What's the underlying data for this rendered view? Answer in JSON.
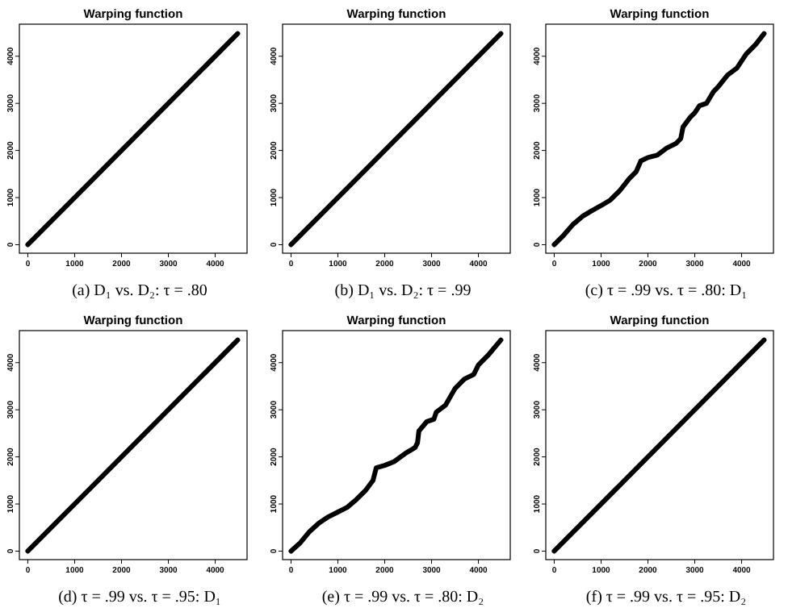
{
  "chart_data": [
    {
      "type": "line",
      "title": "Warping function",
      "annotations": [
        "(a) D₁ vs. D₂: τ = .80"
      ],
      "xlim": [
        -180,
        4680
      ],
      "ylim": [
        -180,
        4680
      ],
      "xticks": [
        0,
        1000,
        2000,
        3000,
        4000
      ],
      "yticks": [
        0,
        1000,
        2000,
        3000,
        4000
      ],
      "series": [
        {
          "color": "#000000",
          "x": [
            0,
            1500,
            3000,
            4480
          ],
          "values": [
            0,
            1500,
            3000,
            4480
          ]
        }
      ]
    },
    {
      "type": "line",
      "title": "Warping function",
      "annotations": [
        "(b) D₁ vs. D₂: τ = .99"
      ],
      "xlim": [
        -180,
        4680
      ],
      "ylim": [
        -180,
        4680
      ],
      "xticks": [
        0,
        1000,
        2000,
        3000,
        4000
      ],
      "yticks": [
        0,
        1000,
        2000,
        3000,
        4000
      ],
      "series": [
        {
          "color": "#000000",
          "x": [
            0,
            1500,
            3000,
            4480
          ],
          "values": [
            0,
            1500,
            3000,
            4480
          ]
        }
      ]
    },
    {
      "type": "line",
      "title": "Warping function",
      "annotations": [
        "(c) τ = .99 vs. τ = .80: D₁"
      ],
      "xlim": [
        -180,
        4680
      ],
      "ylim": [
        -180,
        4680
      ],
      "xticks": [
        0,
        1000,
        2000,
        3000,
        4000
      ],
      "yticks": [
        0,
        1000,
        2000,
        3000,
        4000
      ],
      "series": [
        {
          "color": "#000000",
          "x": [
            0,
            200,
            400,
            600,
            800,
            1000,
            1200,
            1400,
            1600,
            1750,
            1850,
            2000,
            2200,
            2400,
            2600,
            2700,
            2750,
            2900,
            3000,
            3100,
            3250,
            3400,
            3500,
            3700,
            3900,
            4000,
            4100,
            4300,
            4480
          ],
          "values": [
            0,
            200,
            430,
            600,
            720,
            830,
            950,
            1150,
            1400,
            1550,
            1780,
            1850,
            1900,
            2050,
            2150,
            2250,
            2500,
            2700,
            2800,
            2950,
            3000,
            3250,
            3350,
            3600,
            3750,
            3900,
            4050,
            4250,
            4480
          ]
        }
      ]
    },
    {
      "type": "line",
      "title": "Warping function",
      "annotations": [
        "(d) τ = .99 vs. τ = .95: D₁"
      ],
      "xlim": [
        -180,
        4680
      ],
      "ylim": [
        -180,
        4680
      ],
      "xticks": [
        0,
        1000,
        2000,
        3000,
        4000
      ],
      "yticks": [
        0,
        1000,
        2000,
        3000,
        4000
      ],
      "series": [
        {
          "color": "#000000",
          "x": [
            0,
            1500,
            3000,
            4480
          ],
          "values": [
            0,
            1500,
            3000,
            4480
          ]
        }
      ]
    },
    {
      "type": "line",
      "title": "Warping function",
      "annotations": [
        "(e) τ = .99 vs. τ = .80: D₂"
      ],
      "xlim": [
        -180,
        4680
      ],
      "ylim": [
        -180,
        4680
      ],
      "xticks": [
        0,
        1000,
        2000,
        3000,
        4000
      ],
      "yticks": [
        0,
        1000,
        2000,
        3000,
        4000
      ],
      "series": [
        {
          "color": "#000000",
          "x": [
            0,
            200,
            400,
            600,
            800,
            1000,
            1200,
            1400,
            1600,
            1750,
            1820,
            2000,
            2200,
            2450,
            2650,
            2700,
            2730,
            2900,
            3050,
            3100,
            3300,
            3500,
            3700,
            3900,
            4000,
            4200,
            4480
          ],
          "values": [
            0,
            180,
            420,
            600,
            730,
            830,
            930,
            1100,
            1300,
            1500,
            1770,
            1820,
            1900,
            2080,
            2200,
            2300,
            2550,
            2750,
            2800,
            2950,
            3100,
            3450,
            3650,
            3750,
            3950,
            4150,
            4480
          ]
        }
      ]
    },
    {
      "type": "line",
      "title": "Warping function",
      "annotations": [
        "(f) τ = .99 vs. τ = .95: D₂"
      ],
      "xlim": [
        -180,
        4680
      ],
      "ylim": [
        -180,
        4680
      ],
      "xticks": [
        0,
        1000,
        2000,
        3000,
        4000
      ],
      "yticks": [
        0,
        1000,
        2000,
        3000,
        4000
      ],
      "series": [
        {
          "color": "#000000",
          "x": [
            0,
            1500,
            3000,
            4480
          ],
          "values": [
            0,
            1500,
            3000,
            4480
          ]
        }
      ]
    }
  ]
}
